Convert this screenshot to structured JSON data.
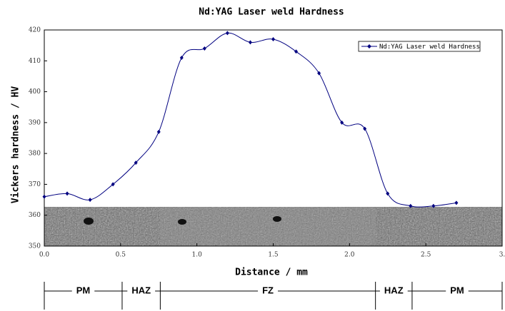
{
  "chart_data": {
    "type": "line",
    "title": "Nd:YAG Laser weld Hardness",
    "x_label": "Distance / mm",
    "y_label": "Vickers hardness / HV",
    "x": [
      0,
      0.15,
      0.3,
      0.45,
      0.6,
      0.75,
      0.9,
      1.05,
      1.2,
      1.35,
      1.5,
      1.65,
      1.8,
      1.95,
      2.1,
      2.25,
      2.4,
      2.55,
      2.7
    ],
    "series": [
      {
        "name": "Nd:YAG Laser weld Hardness",
        "color": "#000080",
        "values": [
          366,
          367,
          365,
          370,
          377,
          387,
          411,
          414,
          419,
          416,
          417,
          413,
          406,
          390,
          388,
          367,
          363,
          363,
          364
        ]
      }
    ],
    "xlim": [
      0,
      3
    ],
    "xticks": [
      {
        "value": 0,
        "label": "0.0"
      },
      0.5,
      {
        "value": 1,
        "label": "1.0"
      },
      1.5,
      {
        "value": 2,
        "label": "2.0"
      },
      2.5,
      {
        "value": 3,
        "label": "3."
      }
    ],
    "ylim": [
      350,
      420
    ],
    "yticks": [
      350,
      360,
      370,
      380,
      390,
      400,
      410,
      420
    ],
    "legend": "upper right",
    "zones": [
      {
        "label": "PM",
        "start": 0,
        "end": 0.51
      },
      {
        "label": "HAZ",
        "start": 0.51,
        "end": 0.76
      },
      {
        "label": "FZ",
        "start": 0.76,
        "end": 2.17
      },
      {
        "label": "HAZ",
        "start": 2.17,
        "end": 2.41
      },
      {
        "label": "PM",
        "start": 2.41,
        "end": 3
      }
    ]
  }
}
